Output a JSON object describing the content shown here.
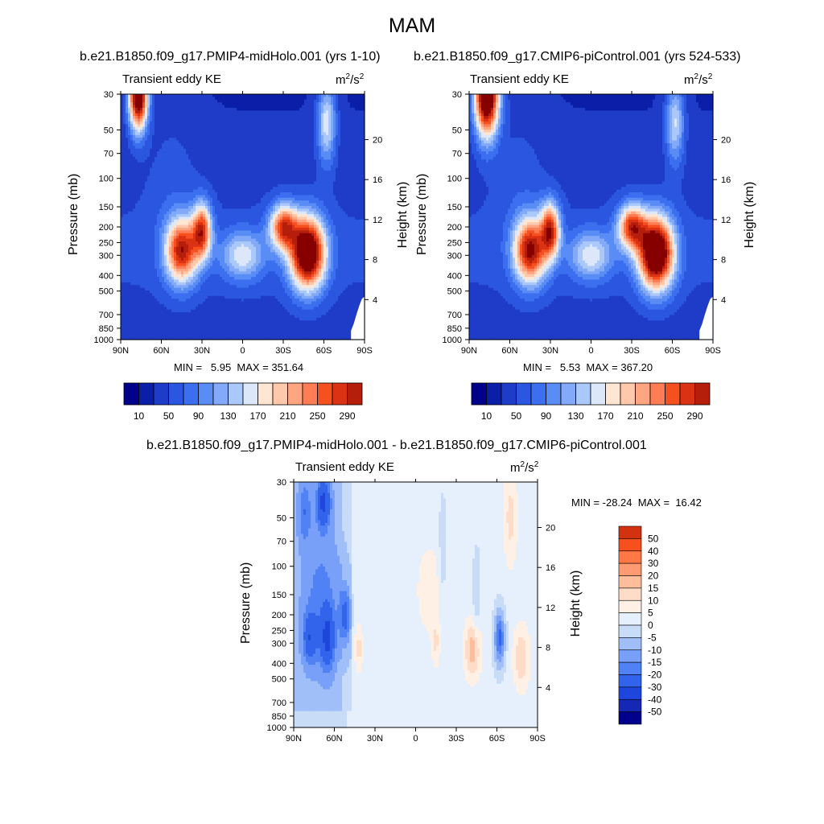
{
  "figure": {
    "season": "MAM",
    "variable": "Transient eddy KE",
    "units_base": "m",
    "units_sup1": "2",
    "units_mid": "/s",
    "units_sup2": "2",
    "pressure_axis_label": "Pressure (mb)",
    "height_axis_label": "Height (km)"
  },
  "panels": {
    "left": {
      "title": "b.e21.B1850.f09_g17.PMIP4-midHolo.001 (yrs 1-10)",
      "min_max_text": "MIN =   5.95  MAX = 351.64"
    },
    "right": {
      "title": "b.e21.B1850.f09_g17.CMIP6-piControl.001 (yrs 524-533)",
      "min_max_text": "MIN =   5.53  MAX = 367.20"
    },
    "diff": {
      "title": "b.e21.B1850.f09_g17.PMIP4-midHolo.001 - b.e21.B1850.f09_g17.CMIP6-piControl.001",
      "min_max_text": "MIN = -28.24  MAX =  16.42"
    }
  },
  "colors": {
    "ke_levels": [
      "#00008b",
      "#0a1ea8",
      "#1e3cc8",
      "#2a56e0",
      "#3c6ef0",
      "#5a8cf5",
      "#82aaf8",
      "#aac8fa",
      "#dce8fa",
      "#ffe6d2",
      "#ffc8aa",
      "#ffa582",
      "#ff7d55",
      "#f5501e",
      "#dc3214",
      "#b41e0a",
      "#870000"
    ],
    "diff_levels": [
      "#00008b",
      "#1428b4",
      "#1e46dc",
      "#3264eb",
      "#5082f5",
      "#78a0f8",
      "#a0bef8",
      "#c8dcf8",
      "#e6f0fc",
      "#fff0e6",
      "#ffdcc8",
      "#ffbe9b",
      "#ff9b73",
      "#ff7846",
      "#f5501e",
      "#d23210",
      "#a01905",
      "#780000"
    ]
  },
  "chart_data": [
    {
      "type": "heatmap",
      "name": "midHolo transient eddy KE",
      "title": "b.e21.B1850.f09_g17.PMIP4-midHolo.001 (yrs 1-10)",
      "xlabel": "",
      "ylabel": "Pressure (mb)",
      "y2label": "Height (km)",
      "x_range": [
        90,
        -90
      ],
      "x_ticks": [
        90,
        60,
        30,
        0,
        -30,
        -60,
        -90
      ],
      "x_tick_labels": [
        "90N",
        "60N",
        "30N",
        "0",
        "30S",
        "60S",
        "90S"
      ],
      "y_range_mb": [
        1000,
        30
      ],
      "y_ticks_mb": [
        30,
        50,
        70,
        100,
        150,
        200,
        250,
        300,
        400,
        500,
        700,
        850,
        1000
      ],
      "y2_ticks_km": [
        4,
        8,
        12,
        16,
        20
      ],
      "colorbar_ticks": [
        10,
        50,
        90,
        130,
        170,
        210,
        250,
        290
      ],
      "min": 5.95,
      "max": 351.64,
      "features": [
        {
          "lat": 77,
          "p_mb": 30,
          "value": 345,
          "wlat": 7,
          "wlogp": 0.22
        },
        {
          "lat": 45,
          "p_mb": 280,
          "value": 250,
          "wlat": 12,
          "wlogp": 0.2
        },
        {
          "lat": 30,
          "p_mb": 210,
          "value": 215,
          "wlat": 7,
          "wlogp": 0.17
        },
        {
          "lat": -48,
          "p_mb": 290,
          "value": 340,
          "wlat": 13,
          "wlogp": 0.22
        },
        {
          "lat": -30,
          "p_mb": 200,
          "value": 220,
          "wlat": 10,
          "wlogp": 0.14
        },
        {
          "lat": -62,
          "p_mb": 45,
          "value": 130,
          "wlat": 7,
          "wlogp": 0.25
        },
        {
          "lat": 0,
          "p_mb": 300,
          "value": 115,
          "wlat": 16,
          "wlogp": 0.15
        }
      ]
    },
    {
      "type": "heatmap",
      "name": "piControl transient eddy KE",
      "title": "b.e21.B1850.f09_g17.CMIP6-piControl.001 (yrs 524-533)",
      "xlabel": "",
      "ylabel": "Pressure (mb)",
      "y2label": "Height (km)",
      "x_range": [
        90,
        -90
      ],
      "x_ticks": [
        90,
        60,
        30,
        0,
        -30,
        -60,
        -90
      ],
      "x_tick_labels": [
        "90N",
        "60N",
        "30N",
        "0",
        "30S",
        "60S",
        "90S"
      ],
      "y_range_mb": [
        1000,
        30
      ],
      "y_ticks_mb": [
        30,
        50,
        70,
        100,
        150,
        200,
        250,
        300,
        400,
        500,
        700,
        850,
        1000
      ],
      "y2_ticks_km": [
        4,
        8,
        12,
        16,
        20
      ],
      "colorbar_ticks": [
        10,
        50,
        90,
        130,
        170,
        210,
        250,
        290
      ],
      "min": 5.53,
      "max": 367.2,
      "features": [
        {
          "lat": 77,
          "p_mb": 30,
          "value": 365,
          "wlat": 9,
          "wlogp": 0.26
        },
        {
          "lat": 45,
          "p_mb": 280,
          "value": 265,
          "wlat": 12,
          "wlogp": 0.2
        },
        {
          "lat": 30,
          "p_mb": 210,
          "value": 225,
          "wlat": 7,
          "wlogp": 0.17
        },
        {
          "lat": -48,
          "p_mb": 290,
          "value": 355,
          "wlat": 13,
          "wlogp": 0.22
        },
        {
          "lat": -30,
          "p_mb": 200,
          "value": 225,
          "wlat": 10,
          "wlogp": 0.14
        },
        {
          "lat": -62,
          "p_mb": 45,
          "value": 120,
          "wlat": 7,
          "wlogp": 0.25
        },
        {
          "lat": 0,
          "p_mb": 300,
          "value": 115,
          "wlat": 16,
          "wlogp": 0.15
        }
      ]
    },
    {
      "type": "heatmap",
      "name": "midHolo minus piControl difference",
      "title": "b.e21.B1850.f09_g17.PMIP4-midHolo.001 - b.e21.B1850.f09_g17.CMIP6-piControl.001",
      "xlabel": "",
      "ylabel": "Pressure (mb)",
      "y2label": "Height (km)",
      "x_range": [
        90,
        -90
      ],
      "x_ticks": [
        90,
        60,
        30,
        0,
        -30,
        -60,
        -90
      ],
      "x_tick_labels": [
        "90N",
        "60N",
        "30N",
        "0",
        "30S",
        "60S",
        "90S"
      ],
      "y_range_mb": [
        1000,
        30
      ],
      "y_ticks_mb": [
        30,
        50,
        70,
        100,
        150,
        200,
        250,
        300,
        400,
        500,
        700,
        850,
        1000
      ],
      "y2_ticks_km": [
        4,
        8,
        12,
        16,
        20
      ],
      "colorbar_ticks": [
        50,
        40,
        30,
        20,
        15,
        10,
        5,
        0,
        -5,
        -10,
        -15,
        -20,
        -30,
        -40,
        -50
      ],
      "min": -28.24,
      "max": 16.42,
      "features": [
        {
          "lat": 68,
          "p_mb": 40,
          "value": -25,
          "wlat": 5,
          "wlogp": 0.15
        },
        {
          "lat": 82,
          "p_mb": 45,
          "value": -12,
          "wlat": 5,
          "wlogp": 0.2
        },
        {
          "lat": 65,
          "p_mb": 280,
          "value": -22,
          "wlat": 5,
          "wlogp": 0.18
        },
        {
          "lat": 78,
          "p_mb": 280,
          "value": -18,
          "wlat": 5,
          "wlogp": 0.15
        },
        {
          "lat": 52,
          "p_mb": 200,
          "value": -18,
          "wlat": 4,
          "wlogp": 0.18
        },
        {
          "lat": 70,
          "p_mb": 160,
          "value": -10,
          "wlat": 14,
          "wlogp": 0.45
        },
        {
          "lat": -62,
          "p_mb": 280,
          "value": -24,
          "wlat": 4,
          "wlogp": 0.18
        },
        {
          "lat": -20,
          "p_mb": 80,
          "value": -6,
          "wlat": 3,
          "wlogp": 0.35
        },
        {
          "lat": -45,
          "p_mb": 150,
          "value": -6,
          "wlat": 3,
          "wlogp": 0.3
        },
        {
          "lat": -42,
          "p_mb": 330,
          "value": 16,
          "wlat": 6,
          "wlogp": 0.18
        },
        {
          "lat": -78,
          "p_mb": 370,
          "value": 12,
          "wlat": 6,
          "wlogp": 0.2
        },
        {
          "lat": -70,
          "p_mb": 50,
          "value": 10,
          "wlat": 5,
          "wlogp": 0.3
        },
        {
          "lat": 42,
          "p_mb": 320,
          "value": 10,
          "wlat": 3,
          "wlogp": 0.15
        },
        {
          "lat": -15,
          "p_mb": 300,
          "value": 8,
          "wlat": 3,
          "wlogp": 0.15
        },
        {
          "lat": -10,
          "p_mb": 140,
          "value": 6,
          "wlat": 10,
          "wlogp": 0.3
        }
      ]
    }
  ]
}
